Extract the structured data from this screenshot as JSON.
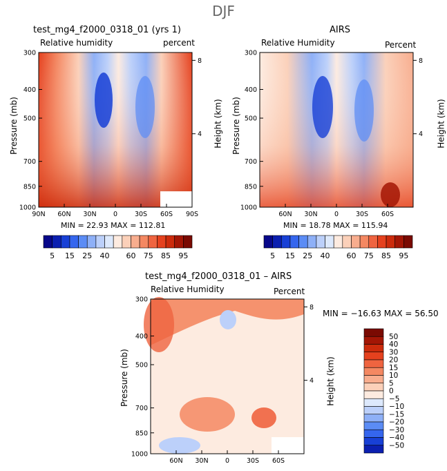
{
  "figure_title": "DJF",
  "chart_data": [
    {
      "type": "heatmap",
      "title": "test_mg4_f2000_0318_01 (yrs 1)",
      "variable": "Relative humidity",
      "units": "percent",
      "ylabel": "Pressure (mb)",
      "ylabel_right": "Height (km)",
      "xlabel": "",
      "x_ticks": [
        "90N",
        "60N",
        "30N",
        "0",
        "30S",
        "60S",
        "90S"
      ],
      "x_values": [
        90,
        60,
        30,
        0,
        -30,
        -60,
        -90
      ],
      "xlim": [
        90,
        -90
      ],
      "y_ticks": [
        "300",
        "400",
        "500",
        "700",
        "850",
        "1000"
      ],
      "y_values": [
        300,
        400,
        500,
        700,
        850,
        1000
      ],
      "ylim": [
        1000,
        300
      ],
      "right_ticks": [
        "8",
        "4"
      ],
      "right_values": [
        8,
        4
      ],
      "stats_text": "MIN =   22.93   MAX =  112.81",
      "min": 22.93,
      "max": 112.81
    },
    {
      "type": "heatmap",
      "title": "AIRS",
      "variable": "Relative Humidity",
      "units": "Percent",
      "ylabel": "Pressure (mb)",
      "ylabel_right": "Height (km)",
      "xlabel": "",
      "x_ticks": [
        "60N",
        "30N",
        "0",
        "30S",
        "60S"
      ],
      "x_values": [
        60,
        30,
        0,
        -30,
        -60
      ],
      "xlim": [
        90,
        -90
      ],
      "y_ticks": [
        "300",
        "400",
        "500",
        "700",
        "850",
        "1000"
      ],
      "y_values": [
        300,
        400,
        500,
        700,
        850,
        1000
      ],
      "ylim": [
        1000,
        300
      ],
      "right_ticks": [
        "8",
        "4"
      ],
      "right_values": [
        8,
        4
      ],
      "stats_text": "MIN =   18.78   MAX =  115.94",
      "min": 18.78,
      "max": 115.94
    },
    {
      "type": "heatmap",
      "title": "test_mg4_f2000_0318_01 – AIRS",
      "variable": "Relative Humidity",
      "units": "Percent",
      "ylabel": "Pressure (mb)",
      "ylabel_right": "Height (km)",
      "xlabel": "",
      "x_ticks": [
        "60N",
        "30N",
        "0",
        "30S",
        "60S"
      ],
      "x_values": [
        60,
        30,
        0,
        -30,
        -60
      ],
      "xlim": [
        90,
        -90
      ],
      "y_ticks": [
        "300",
        "400",
        "500",
        "700",
        "850",
        "1000"
      ],
      "y_values": [
        300,
        400,
        500,
        700,
        850,
        1000
      ],
      "ylim": [
        1000,
        300
      ],
      "right_ticks": [
        "8",
        "4"
      ],
      "right_values": [
        8,
        4
      ],
      "stats_text": "MIN = −16.63   MAX =   56.50",
      "min": -16.63,
      "max": 56.5
    }
  ],
  "colorbar_abs": {
    "labels": [
      "5",
      "15",
      "25",
      "40",
      "60",
      "75",
      "85",
      "95"
    ],
    "colors": [
      "#08088a",
      "#0b1fb0",
      "#1840d6",
      "#3566ee",
      "#5b8cf5",
      "#8eb0f7",
      "#bcd0fa",
      "#dde9fc",
      "#fdebe0",
      "#fbd0b9",
      "#f8ad8e",
      "#f48862",
      "#ef6440",
      "#e5411e",
      "#cc2b0c",
      "#a31605",
      "#7a0a02"
    ]
  },
  "colorbar_diff": {
    "labels": [
      "50",
      "40",
      "30",
      "20",
      "15",
      "10",
      "5",
      "0",
      "−5",
      "−10",
      "−15",
      "−20",
      "−30",
      "−40",
      "−50"
    ],
    "colors": [
      "#7a0a02",
      "#a31605",
      "#cc2b0c",
      "#e5411e",
      "#ef6440",
      "#f48862",
      "#f8ad8e",
      "#fbd0b9",
      "#fdebe0",
      "#dde9fc",
      "#bcd0fa",
      "#8eb0f7",
      "#5b8cf5",
      "#3566ee",
      "#1840d6",
      "#0b1fb0"
    ]
  }
}
